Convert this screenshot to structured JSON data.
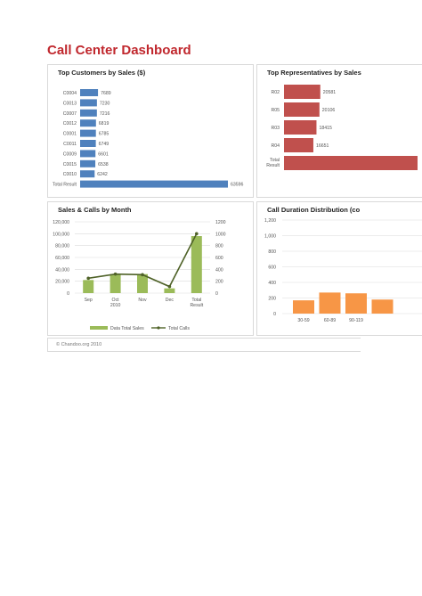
{
  "title": "Call Center Dashboard",
  "footer": "© Chandoo.org 2010",
  "colors": {
    "title": "#c0272d",
    "blue": "#4f81bd",
    "red": "#c0504d",
    "green": "#9bbb59",
    "darkgreen": "#4f6228",
    "orange": "#f79646"
  },
  "chart_data": [
    {
      "type": "bar",
      "orientation": "horizontal",
      "title": "Top Customers by Sales ($)",
      "categories": [
        "C0004",
        "C0013",
        "C0007",
        "C0012",
        "C0001",
        "C0011",
        "C0009",
        "C0015",
        "C0010",
        "Total Result"
      ],
      "values": [
        7689,
        7230,
        7216,
        6819,
        6785,
        6749,
        6601,
        6538,
        6242,
        63596
      ],
      "value_labels": [
        "7689",
        "7230",
        "7216",
        "6819",
        "6785",
        "6749",
        "6601",
        "6538",
        "6242",
        "63596"
      ],
      "color": "#4f81bd",
      "xlim": [
        0,
        63596
      ]
    },
    {
      "type": "bar",
      "orientation": "horizontal",
      "title": "Top Representatives by Sales",
      "categories": [
        "R02",
        "R05",
        "R03",
        "R04",
        "Total Result"
      ],
      "category_lines": [
        [
          "R02"
        ],
        [
          "R05"
        ],
        [
          "R03"
        ],
        [
          "R04"
        ],
        [
          "Total",
          "Result"
        ]
      ],
      "values": [
        20581,
        20106,
        18415,
        16651,
        75753
      ],
      "value_labels": [
        "20581",
        "20106",
        "18415",
        "16651",
        ""
      ],
      "color": "#c0504d",
      "xlim": [
        0,
        75753
      ]
    },
    {
      "type": "bar",
      "title": "Sales & Calls by Month",
      "categories": [
        "Sep",
        "Oct",
        "Nov",
        "Dec",
        "Total Result"
      ],
      "category_lines": [
        [
          "Sep"
        ],
        [
          "Oct"
        ],
        [
          "Nov"
        ],
        [
          "Dec"
        ],
        [
          "Total",
          "Result"
        ]
      ],
      "x_group_label": "2010",
      "series": [
        {
          "name": "Data Total Sales",
          "type": "bar",
          "color": "#9bbb59",
          "values": [
            22000,
            32000,
            32000,
            8000,
            96000
          ]
        },
        {
          "name": "Total Calls",
          "type": "line",
          "color": "#4f6228",
          "axis": "right",
          "values": [
            250,
            320,
            310,
            110,
            1000
          ]
        }
      ],
      "ylim": [
        0,
        120000
      ],
      "yticks": [
        "0",
        "20,000",
        "40,000",
        "60,000",
        "80,000",
        "100,000",
        "120,000"
      ],
      "ylim_right": [
        0,
        1200
      ],
      "yticks_right": [
        "0",
        "200",
        "400",
        "600",
        "800",
        "1000",
        "1200"
      ],
      "legend": "bottom"
    },
    {
      "type": "bar",
      "title": "Call Duration Distribution (co",
      "categories": [
        "30-59",
        "60-89",
        "90-119",
        ""
      ],
      "values": [
        170,
        270,
        260,
        180
      ],
      "color": "#f79646",
      "ylim": [
        0,
        1200
      ],
      "yticks": [
        "0",
        "200",
        "400",
        "600",
        "800",
        "1,000",
        "1,200"
      ],
      "grid": true
    }
  ]
}
